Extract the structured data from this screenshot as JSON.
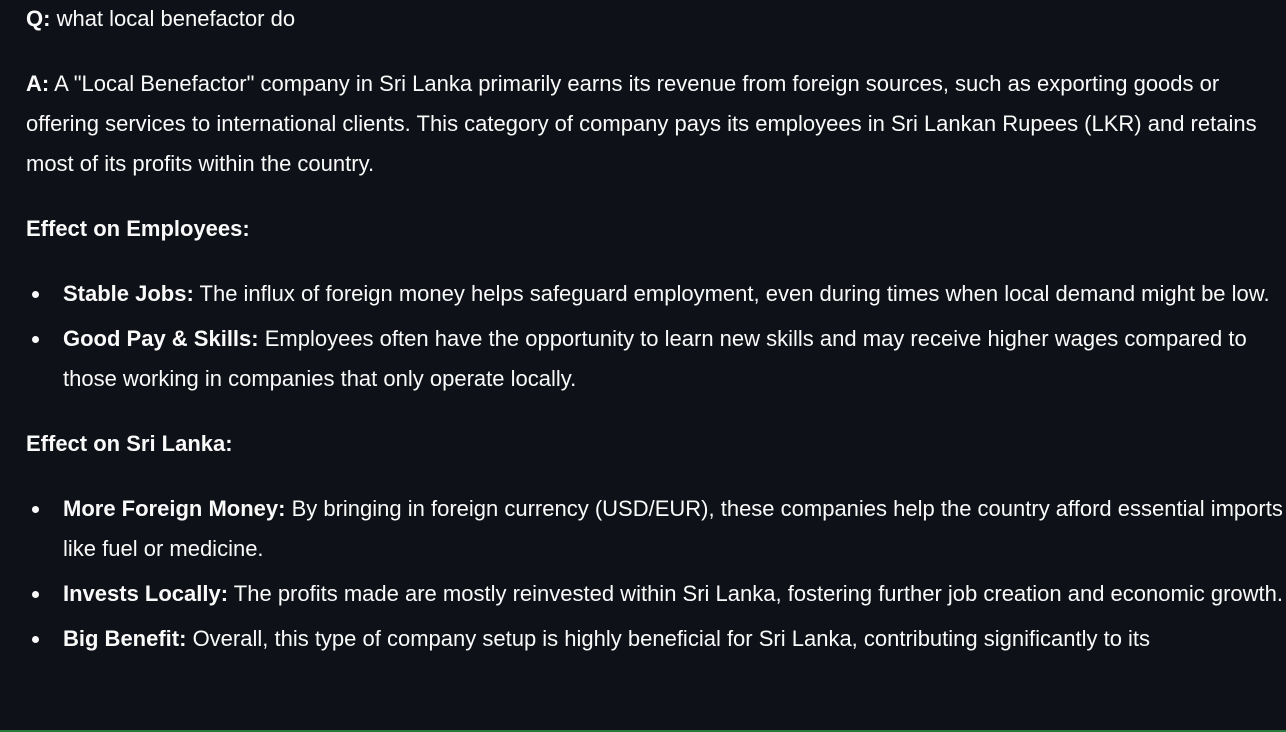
{
  "question": {
    "prefix": "Q:",
    "text": " what local benefactor do"
  },
  "answer": {
    "prefix": "A:",
    "text": " A \"Local Benefactor\" company in Sri Lanka primarily earns its revenue from foreign sources, such as exporting goods or offering services to international clients. This category of company pays its employees in Sri Lankan Rupees (LKR) and retains most of its profits within the country."
  },
  "sections": [
    {
      "heading": "Effect on Employees:",
      "items": [
        {
          "label": "Stable Jobs:",
          "text": " The influx of foreign money helps safeguard employment, even during times when local demand might be low."
        },
        {
          "label": "Good Pay & Skills:",
          "text": " Employees often have the opportunity to learn new skills and may receive higher wages compared to those working in companies that only operate locally."
        }
      ]
    },
    {
      "heading": "Effect on Sri Lanka:",
      "items": [
        {
          "label": "More Foreign Money:",
          "text": " By bringing in foreign currency (USD/EUR), these companies help the country afford essential imports like fuel or medicine."
        },
        {
          "label": "Invests Locally:",
          "text": " The profits made are mostly reinvested within Sri Lanka, fostering further job creation and economic growth."
        },
        {
          "label": "Big Benefit:",
          "text": " Overall, this type of company setup is highly beneficial for Sri Lanka, contributing significantly to its"
        }
      ]
    }
  ]
}
